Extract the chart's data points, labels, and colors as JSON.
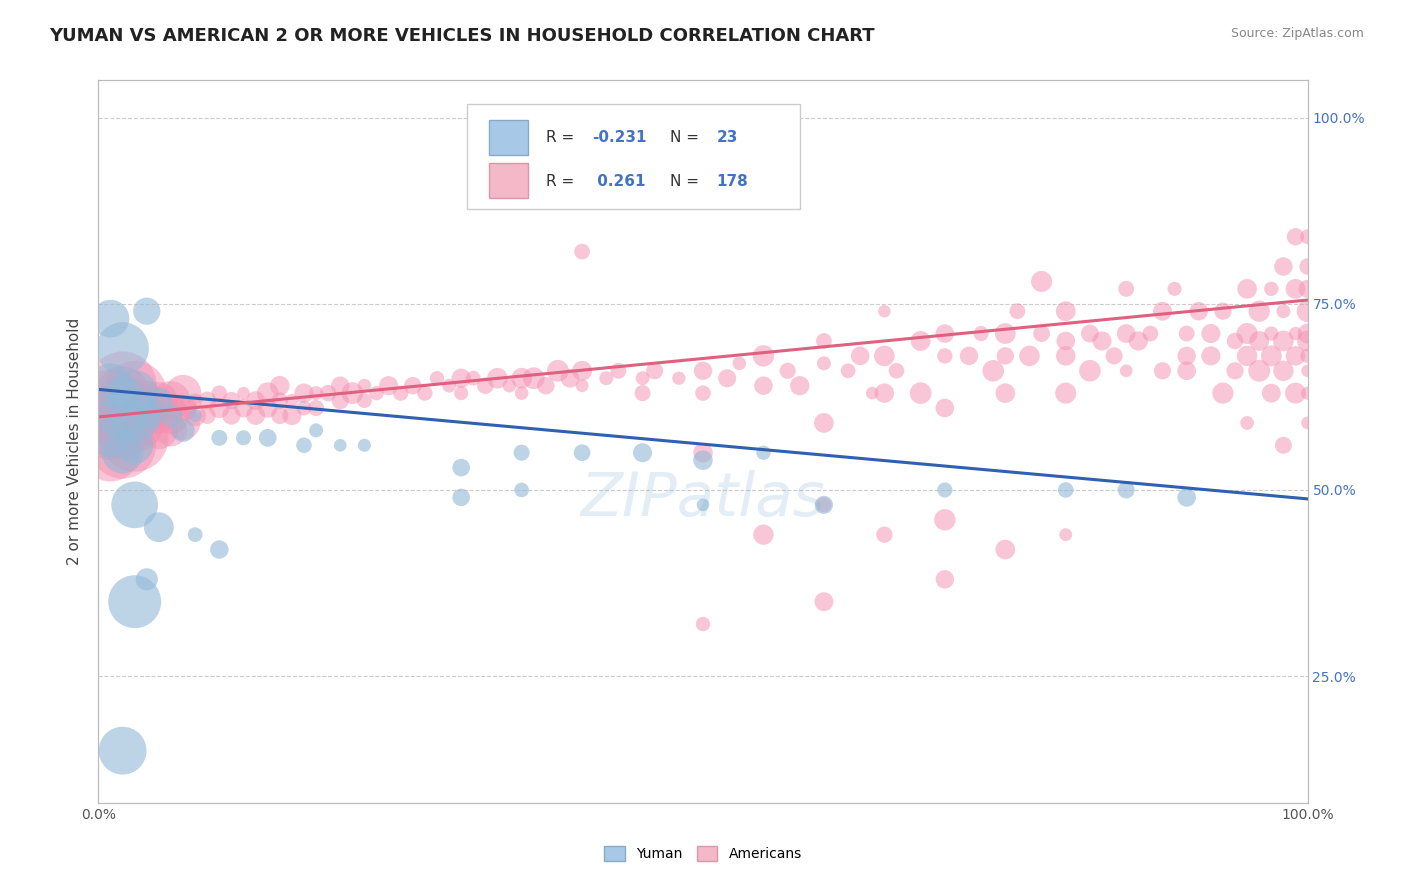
{
  "title": "YUMAN VS AMERICAN 2 OR MORE VEHICLES IN HOUSEHOLD CORRELATION CHART",
  "source_text": "Source: ZipAtlas.com",
  "ylabel": "2 or more Vehicles in Household",
  "xmin": 0.0,
  "xmax": 1.0,
  "ymin": 0.08,
  "ymax": 1.05,
  "blue_color": "#92b8d8",
  "pink_color": "#f48fb1",
  "blue_line_color": "#3060b0",
  "pink_line_color": "#e06080",
  "blue_line": [
    0.0,
    1.0,
    0.635,
    0.488
  ],
  "pink_line": [
    0.0,
    1.0,
    0.598,
    0.755
  ],
  "watermark": "ZIPatlas",
  "blue_scatter": [
    [
      0.01,
      0.73
    ],
    [
      0.02,
      0.69
    ],
    [
      0.04,
      0.74
    ],
    [
      0.01,
      0.64
    ],
    [
      0.03,
      0.63
    ],
    [
      0.02,
      0.6
    ],
    [
      0.01,
      0.57
    ],
    [
      0.02,
      0.55
    ],
    [
      0.03,
      0.56
    ],
    [
      0.02,
      0.63
    ],
    [
      0.03,
      0.6
    ],
    [
      0.04,
      0.6
    ],
    [
      0.05,
      0.62
    ],
    [
      0.06,
      0.6
    ],
    [
      0.07,
      0.58
    ],
    [
      0.08,
      0.6
    ],
    [
      0.1,
      0.57
    ],
    [
      0.12,
      0.57
    ],
    [
      0.14,
      0.57
    ],
    [
      0.17,
      0.56
    ],
    [
      0.18,
      0.58
    ],
    [
      0.2,
      0.56
    ],
    [
      0.22,
      0.56
    ],
    [
      0.3,
      0.53
    ],
    [
      0.35,
      0.55
    ],
    [
      0.4,
      0.55
    ],
    [
      0.45,
      0.55
    ],
    [
      0.5,
      0.54
    ],
    [
      0.55,
      0.55
    ],
    [
      0.3,
      0.49
    ],
    [
      0.35,
      0.5
    ],
    [
      0.5,
      0.48
    ],
    [
      0.6,
      0.48
    ],
    [
      0.7,
      0.5
    ],
    [
      0.8,
      0.5
    ],
    [
      0.85,
      0.5
    ],
    [
      0.9,
      0.49
    ],
    [
      0.03,
      0.48
    ],
    [
      0.05,
      0.45
    ],
    [
      0.08,
      0.44
    ],
    [
      0.1,
      0.42
    ],
    [
      0.04,
      0.38
    ],
    [
      0.03,
      0.35
    ],
    [
      0.02,
      0.15
    ]
  ],
  "blue_sizes": [
    180,
    180,
    180,
    180,
    180,
    180,
    180,
    180,
    180,
    180,
    180,
    180,
    120,
    120,
    120,
    120,
    120,
    120,
    120,
    120,
    120,
    120,
    120,
    120,
    120,
    120,
    120,
    120,
    120,
    120,
    120,
    120,
    120,
    120,
    120,
    120,
    120,
    120,
    120,
    120,
    120,
    120,
    120,
    120
  ],
  "pink_scatter": [
    [
      0.01,
      0.6
    ],
    [
      0.01,
      0.62
    ],
    [
      0.01,
      0.58
    ],
    [
      0.01,
      0.55
    ],
    [
      0.02,
      0.63
    ],
    [
      0.02,
      0.6
    ],
    [
      0.02,
      0.58
    ],
    [
      0.02,
      0.56
    ],
    [
      0.02,
      0.64
    ],
    [
      0.02,
      0.62
    ],
    [
      0.03,
      0.63
    ],
    [
      0.03,
      0.61
    ],
    [
      0.03,
      0.59
    ],
    [
      0.03,
      0.57
    ],
    [
      0.04,
      0.63
    ],
    [
      0.04,
      0.61
    ],
    [
      0.04,
      0.59
    ],
    [
      0.05,
      0.62
    ],
    [
      0.05,
      0.6
    ],
    [
      0.05,
      0.58
    ],
    [
      0.06,
      0.62
    ],
    [
      0.06,
      0.6
    ],
    [
      0.06,
      0.58
    ],
    [
      0.07,
      0.63
    ],
    [
      0.07,
      0.61
    ],
    [
      0.07,
      0.59
    ],
    [
      0.08,
      0.62
    ],
    [
      0.08,
      0.6
    ],
    [
      0.09,
      0.62
    ],
    [
      0.09,
      0.6
    ],
    [
      0.1,
      0.63
    ],
    [
      0.1,
      0.61
    ],
    [
      0.11,
      0.62
    ],
    [
      0.11,
      0.6
    ],
    [
      0.12,
      0.63
    ],
    [
      0.12,
      0.61
    ],
    [
      0.13,
      0.62
    ],
    [
      0.13,
      0.6
    ],
    [
      0.14,
      0.63
    ],
    [
      0.14,
      0.61
    ],
    [
      0.15,
      0.62
    ],
    [
      0.15,
      0.6
    ],
    [
      0.15,
      0.64
    ],
    [
      0.16,
      0.62
    ],
    [
      0.16,
      0.6
    ],
    [
      0.17,
      0.63
    ],
    [
      0.17,
      0.61
    ],
    [
      0.18,
      0.63
    ],
    [
      0.18,
      0.61
    ],
    [
      0.19,
      0.63
    ],
    [
      0.2,
      0.64
    ],
    [
      0.2,
      0.62
    ],
    [
      0.21,
      0.63
    ],
    [
      0.22,
      0.64
    ],
    [
      0.22,
      0.62
    ],
    [
      0.23,
      0.63
    ],
    [
      0.24,
      0.64
    ],
    [
      0.25,
      0.63
    ],
    [
      0.26,
      0.64
    ],
    [
      0.27,
      0.63
    ],
    [
      0.28,
      0.65
    ],
    [
      0.29,
      0.64
    ],
    [
      0.3,
      0.65
    ],
    [
      0.3,
      0.63
    ],
    [
      0.31,
      0.65
    ],
    [
      0.32,
      0.64
    ],
    [
      0.33,
      0.65
    ],
    [
      0.34,
      0.64
    ],
    [
      0.35,
      0.65
    ],
    [
      0.35,
      0.63
    ],
    [
      0.36,
      0.65
    ],
    [
      0.37,
      0.64
    ],
    [
      0.38,
      0.66
    ],
    [
      0.39,
      0.65
    ],
    [
      0.4,
      0.66
    ],
    [
      0.4,
      0.64
    ],
    [
      0.4,
      0.82
    ],
    [
      0.42,
      0.65
    ],
    [
      0.43,
      0.66
    ],
    [
      0.45,
      0.65
    ],
    [
      0.45,
      0.63
    ],
    [
      0.46,
      0.66
    ],
    [
      0.48,
      0.65
    ],
    [
      0.5,
      0.55
    ],
    [
      0.5,
      0.66
    ],
    [
      0.5,
      0.63
    ],
    [
      0.52,
      0.65
    ],
    [
      0.53,
      0.67
    ],
    [
      0.55,
      0.64
    ],
    [
      0.55,
      0.68
    ],
    [
      0.57,
      0.66
    ],
    [
      0.58,
      0.64
    ],
    [
      0.6,
      0.67
    ],
    [
      0.6,
      0.59
    ],
    [
      0.6,
      0.7
    ],
    [
      0.62,
      0.66
    ],
    [
      0.63,
      0.68
    ],
    [
      0.64,
      0.63
    ],
    [
      0.65,
      0.68
    ],
    [
      0.65,
      0.74
    ],
    [
      0.65,
      0.63
    ],
    [
      0.66,
      0.66
    ],
    [
      0.68,
      0.7
    ],
    [
      0.68,
      0.63
    ],
    [
      0.7,
      0.68
    ],
    [
      0.7,
      0.71
    ],
    [
      0.7,
      0.61
    ],
    [
      0.72,
      0.68
    ],
    [
      0.73,
      0.71
    ],
    [
      0.74,
      0.66
    ],
    [
      0.75,
      0.68
    ],
    [
      0.75,
      0.71
    ],
    [
      0.75,
      0.63
    ],
    [
      0.76,
      0.74
    ],
    [
      0.77,
      0.68
    ],
    [
      0.78,
      0.71
    ],
    [
      0.78,
      0.78
    ],
    [
      0.8,
      0.7
    ],
    [
      0.8,
      0.63
    ],
    [
      0.8,
      0.68
    ],
    [
      0.8,
      0.74
    ],
    [
      0.82,
      0.71
    ],
    [
      0.82,
      0.66
    ],
    [
      0.83,
      0.7
    ],
    [
      0.84,
      0.68
    ],
    [
      0.85,
      0.71
    ],
    [
      0.85,
      0.66
    ],
    [
      0.85,
      0.77
    ],
    [
      0.86,
      0.7
    ],
    [
      0.87,
      0.71
    ],
    [
      0.88,
      0.74
    ],
    [
      0.88,
      0.66
    ],
    [
      0.89,
      0.77
    ],
    [
      0.9,
      0.71
    ],
    [
      0.9,
      0.68
    ],
    [
      0.9,
      0.66
    ],
    [
      0.91,
      0.74
    ],
    [
      0.92,
      0.71
    ],
    [
      0.92,
      0.68
    ],
    [
      0.93,
      0.74
    ],
    [
      0.93,
      0.63
    ],
    [
      0.94,
      0.7
    ],
    [
      0.94,
      0.66
    ],
    [
      0.95,
      0.71
    ],
    [
      0.95,
      0.68
    ],
    [
      0.95,
      0.77
    ],
    [
      0.95,
      0.59
    ],
    [
      0.96,
      0.74
    ],
    [
      0.96,
      0.7
    ],
    [
      0.96,
      0.66
    ],
    [
      0.97,
      0.71
    ],
    [
      0.97,
      0.68
    ],
    [
      0.97,
      0.77
    ],
    [
      0.97,
      0.63
    ],
    [
      0.98,
      0.74
    ],
    [
      0.98,
      0.7
    ],
    [
      0.98,
      0.66
    ],
    [
      0.98,
      0.8
    ],
    [
      0.98,
      0.56
    ],
    [
      0.99,
      0.71
    ],
    [
      0.99,
      0.68
    ],
    [
      0.99,
      0.84
    ],
    [
      0.99,
      0.77
    ],
    [
      0.99,
      0.63
    ],
    [
      1.0,
      0.74
    ],
    [
      1.0,
      0.7
    ],
    [
      1.0,
      0.66
    ],
    [
      1.0,
      0.8
    ],
    [
      1.0,
      0.71
    ],
    [
      1.0,
      0.68
    ],
    [
      1.0,
      0.77
    ],
    [
      1.0,
      0.63
    ],
    [
      1.0,
      0.84
    ],
    [
      1.0,
      0.59
    ],
    [
      0.55,
      0.44
    ],
    [
      0.6,
      0.48
    ],
    [
      0.65,
      0.44
    ],
    [
      0.7,
      0.46
    ],
    [
      0.75,
      0.42
    ],
    [
      0.8,
      0.44
    ],
    [
      0.5,
      0.32
    ],
    [
      0.6,
      0.35
    ],
    [
      0.7,
      0.38
    ]
  ],
  "pink_sizes": [
    300,
    300,
    300,
    300,
    400,
    400,
    400,
    400,
    400,
    400,
    500,
    500,
    500,
    500,
    200,
    200,
    200,
    200,
    200,
    200,
    200,
    200,
    200,
    200,
    200,
    200,
    200,
    200,
    200,
    200,
    200,
    200,
    200,
    200,
    200,
    200,
    200,
    200,
    200,
    200,
    200,
    200,
    200,
    200,
    200,
    200,
    200,
    200,
    200,
    200,
    200,
    200,
    200,
    200,
    200,
    200,
    200,
    200,
    200,
    200,
    200,
    200,
    200,
    150,
    150,
    150,
    150,
    150,
    150,
    150,
    150,
    150,
    150,
    150,
    150,
    150,
    150,
    150,
    150,
    150,
    150,
    150,
    150,
    150,
    150,
    150,
    150,
    150,
    150,
    150,
    150,
    150,
    150,
    150,
    150,
    150,
    150,
    150,
    150,
    150,
    150,
    150,
    150,
    150,
    150,
    150,
    150,
    150,
    150,
    150,
    150,
    150,
    150,
    150,
    150,
    150,
    150,
    150,
    150,
    150,
    150,
    150,
    150,
    150,
    150,
    150,
    150,
    150,
    150,
    150,
    150,
    150,
    150,
    150,
    150,
    150,
    150,
    150,
    150,
    150,
    150,
    150,
    150,
    150,
    150,
    150,
    150,
    150,
    150,
    150,
    150,
    150,
    150,
    150,
    150,
    150,
    150,
    150,
    150,
    150,
    150,
    150,
    150,
    150,
    150,
    150,
    150,
    150,
    150,
    150,
    150,
    150,
    150,
    150,
    150,
    150,
    150,
    150,
    150,
    150
  ]
}
